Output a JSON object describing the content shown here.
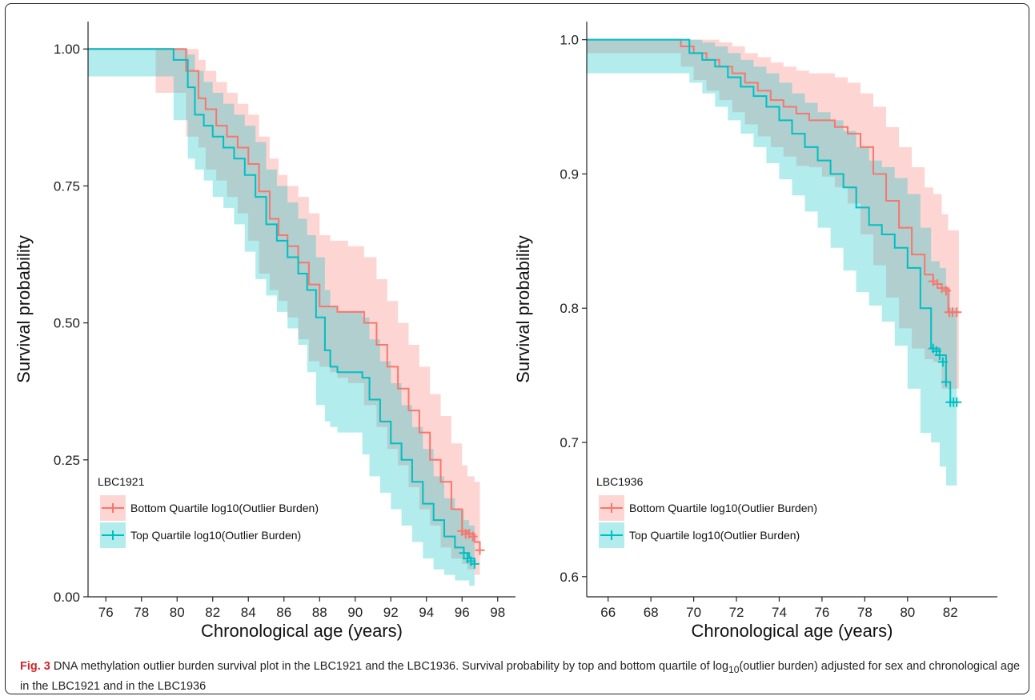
{
  "caption": {
    "label": "Fig. 3",
    "text_before_sub": " DNA methylation outlier burden survival plot in the LBC1921 and the LBC1936. Survival probability by top and bottom quartile of log",
    "subscript": "10",
    "text_after_sub": "(outlier burden) adjusted for sex and chronological age in the LBC1921 and in the LBC1936"
  },
  "colors": {
    "bottom": "#f8766d",
    "top": "#00bfc4",
    "bottom_band": "#f8766d",
    "top_band": "#00bfc4"
  },
  "chart_data": [
    {
      "type": "line",
      "subtype": "kaplan-meier-step",
      "xlabel": "Chronological age (years)",
      "ylabel": "Survival probability",
      "xlim": [
        75,
        99
      ],
      "ylim": [
        0,
        1.05
      ],
      "x_ticks": [
        "76",
        "78",
        "80",
        "82",
        "84",
        "86",
        "88",
        "90",
        "92",
        "94",
        "96",
        "98"
      ],
      "x_tick_values": [
        76,
        78,
        80,
        82,
        84,
        86,
        88,
        90,
        92,
        94,
        96,
        98
      ],
      "y_ticks": [
        "0.00",
        "0.25",
        "0.50",
        "0.75",
        "1.00"
      ],
      "y_tick_values": [
        0,
        0.25,
        0.5,
        0.75,
        1.0
      ],
      "legend": {
        "title": "LBC1921",
        "position": "bottom-left"
      },
      "series": [
        {
          "name": "Bottom Quartile log10(Outlier Burden)",
          "key": "bottom",
          "x": [
            75,
            78.8,
            80.5,
            81.2,
            81.6,
            82.2,
            82.8,
            83.4,
            84.0,
            84.6,
            85.2,
            85.7,
            86.2,
            86.8,
            87.4,
            88.0,
            88.6,
            89.0,
            89.6,
            90.5,
            91.2,
            91.8,
            92.4,
            93.0,
            93.6,
            94.2,
            94.8,
            95.4,
            96.0,
            96.3,
            96.7,
            97.0
          ],
          "y": [
            1.0,
            1.0,
            0.96,
            0.91,
            0.89,
            0.86,
            0.84,
            0.82,
            0.79,
            0.74,
            0.69,
            0.66,
            0.64,
            0.61,
            0.57,
            0.53,
            0.53,
            0.52,
            0.52,
            0.5,
            0.46,
            0.42,
            0.38,
            0.34,
            0.3,
            0.25,
            0.21,
            0.16,
            0.12,
            0.115,
            0.1,
            0.085
          ],
          "band_upper": [
            1.0,
            1.0,
            1.0,
            0.98,
            0.96,
            0.94,
            0.92,
            0.9,
            0.88,
            0.84,
            0.8,
            0.77,
            0.75,
            0.73,
            0.7,
            0.66,
            0.65,
            0.65,
            0.64,
            0.62,
            0.58,
            0.54,
            0.5,
            0.46,
            0.42,
            0.37,
            0.33,
            0.28,
            0.24,
            0.22,
            0.21,
            0.2
          ],
          "band_lower": [
            1.0,
            1.0,
            0.92,
            0.84,
            0.82,
            0.78,
            0.76,
            0.73,
            0.7,
            0.65,
            0.59,
            0.56,
            0.54,
            0.51,
            0.47,
            0.43,
            0.42,
            0.41,
            0.4,
            0.39,
            0.35,
            0.31,
            0.27,
            0.24,
            0.2,
            0.16,
            0.13,
            0.09,
            0.07,
            0.06,
            0.05,
            0.04
          ],
          "censor_x": [
            96.0,
            96.2,
            96.4,
            96.6,
            97.0
          ],
          "censor_y": [
            0.12,
            0.115,
            0.115,
            0.11,
            0.085
          ]
        },
        {
          "name": "Top Quartile log10(Outlier Burden)",
          "key": "top",
          "x": [
            75,
            79.8,
            80.6,
            81.0,
            81.5,
            82.0,
            82.6,
            83.2,
            83.8,
            84.4,
            85.0,
            85.6,
            86.2,
            86.8,
            87.3,
            87.8,
            88.3,
            88.6,
            89.0,
            90.4,
            90.8,
            91.4,
            92.0,
            92.6,
            93.2,
            93.8,
            94.4,
            95.0,
            95.6,
            96.1,
            96.4,
            96.7
          ],
          "y": [
            1.0,
            0.98,
            0.93,
            0.88,
            0.86,
            0.84,
            0.82,
            0.8,
            0.77,
            0.73,
            0.68,
            0.65,
            0.62,
            0.59,
            0.56,
            0.51,
            0.45,
            0.42,
            0.41,
            0.4,
            0.36,
            0.32,
            0.28,
            0.25,
            0.21,
            0.17,
            0.14,
            0.11,
            0.09,
            0.08,
            0.07,
            0.06
          ],
          "band_upper": [
            1.0,
            1.0,
            0.99,
            0.96,
            0.94,
            0.92,
            0.9,
            0.88,
            0.86,
            0.83,
            0.78,
            0.75,
            0.72,
            0.69,
            0.66,
            0.62,
            0.56,
            0.53,
            0.52,
            0.51,
            0.47,
            0.43,
            0.39,
            0.35,
            0.31,
            0.27,
            0.22,
            0.18,
            0.16,
            0.14,
            0.13,
            0.12
          ],
          "band_lower": [
            1.0,
            0.95,
            0.87,
            0.8,
            0.78,
            0.76,
            0.73,
            0.71,
            0.68,
            0.63,
            0.58,
            0.55,
            0.52,
            0.49,
            0.46,
            0.41,
            0.35,
            0.32,
            0.31,
            0.3,
            0.26,
            0.22,
            0.19,
            0.16,
            0.13,
            0.1,
            0.07,
            0.05,
            0.04,
            0.03,
            0.03,
            0.02
          ],
          "censor_x": [
            96.1,
            96.3,
            96.5,
            96.7
          ],
          "censor_y": [
            0.08,
            0.07,
            0.065,
            0.06
          ]
        }
      ]
    },
    {
      "type": "line",
      "subtype": "kaplan-meier-step",
      "xlabel": "Chronological age (years)",
      "ylabel": "Survival probability",
      "xlim": [
        65,
        84.2
      ],
      "ylim": [
        0.585,
        1.0135
      ],
      "x_ticks": [
        "66",
        "68",
        "70",
        "72",
        "74",
        "76",
        "78",
        "80",
        "82"
      ],
      "x_tick_values": [
        66,
        68,
        70,
        72,
        74,
        76,
        78,
        80,
        82
      ],
      "y_ticks": [
        "0.6",
        "0.7",
        "0.8",
        "0.9",
        "1.0"
      ],
      "y_tick_values": [
        0.6,
        0.7,
        0.8,
        0.9,
        1.0
      ],
      "legend": {
        "title": "LBC1936",
        "position": "bottom-left"
      },
      "series": [
        {
          "name": "Bottom Quartile log10(Outlier Burden)",
          "key": "bottom",
          "x": [
            65,
            69.4,
            70.0,
            70.6,
            71.2,
            71.8,
            72.4,
            73.0,
            73.6,
            74.2,
            74.8,
            75.4,
            76.0,
            76.6,
            77.2,
            77.8,
            78.4,
            79.0,
            79.6,
            80.2,
            80.8,
            81.2,
            81.6,
            81.9,
            82.4
          ],
          "y": [
            1.0,
            0.995,
            0.99,
            0.985,
            0.98,
            0.975,
            0.968,
            0.962,
            0.955,
            0.95,
            0.945,
            0.94,
            0.94,
            0.935,
            0.93,
            0.92,
            0.9,
            0.88,
            0.86,
            0.84,
            0.825,
            0.818,
            0.815,
            0.797,
            0.797
          ],
          "band_upper": [
            1.0,
            1.0,
            1.0,
            1.0,
            0.998,
            0.995,
            0.99,
            0.987,
            0.983,
            0.98,
            0.977,
            0.975,
            0.975,
            0.972,
            0.968,
            0.96,
            0.95,
            0.935,
            0.92,
            0.905,
            0.89,
            0.885,
            0.87,
            0.858,
            0.858
          ],
          "band_lower": [
            1.0,
            0.99,
            0.98,
            0.97,
            0.962,
            0.955,
            0.946,
            0.937,
            0.928,
            0.92,
            0.913,
            0.906,
            0.905,
            0.898,
            0.89,
            0.878,
            0.855,
            0.832,
            0.808,
            0.785,
            0.77,
            0.762,
            0.76,
            0.74,
            0.74
          ],
          "censor_x": [
            81.2,
            81.4,
            81.6,
            81.8,
            81.95,
            82.1,
            82.3
          ],
          "censor_y": [
            0.82,
            0.818,
            0.815,
            0.813,
            0.797,
            0.797,
            0.797
          ]
        },
        {
          "name": "Top Quartile log10(Outlier Burden)",
          "key": "top",
          "x": [
            65,
            69.8,
            70.4,
            71.0,
            71.6,
            72.2,
            72.8,
            73.4,
            74.0,
            74.6,
            75.2,
            75.8,
            76.4,
            77.0,
            77.6,
            78.2,
            78.8,
            79.4,
            80.0,
            80.6,
            81.1,
            81.5,
            81.8,
            82.0,
            82.3
          ],
          "y": [
            1.0,
            0.99,
            0.985,
            0.98,
            0.972,
            0.965,
            0.958,
            0.95,
            0.94,
            0.93,
            0.92,
            0.91,
            0.9,
            0.89,
            0.875,
            0.862,
            0.855,
            0.845,
            0.83,
            0.8,
            0.77,
            0.765,
            0.745,
            0.73,
            0.73
          ],
          "band_upper": [
            1.0,
            1.0,
            0.998,
            0.995,
            0.99,
            0.985,
            0.98,
            0.975,
            0.968,
            0.96,
            0.953,
            0.946,
            0.94,
            0.932,
            0.92,
            0.91,
            0.905,
            0.897,
            0.885,
            0.86,
            0.835,
            0.83,
            0.815,
            0.8,
            0.8
          ],
          "band_lower": [
            1.0,
            0.975,
            0.968,
            0.96,
            0.95,
            0.94,
            0.93,
            0.92,
            0.908,
            0.896,
            0.884,
            0.872,
            0.86,
            0.845,
            0.828,
            0.812,
            0.802,
            0.79,
            0.772,
            0.74,
            0.707,
            0.7,
            0.682,
            0.668,
            0.668
          ],
          "censor_x": [
            81.2,
            81.35,
            81.5,
            81.65,
            81.8,
            82.0,
            82.15,
            82.3
          ],
          "censor_y": [
            0.77,
            0.768,
            0.765,
            0.76,
            0.745,
            0.73,
            0.73,
            0.73
          ]
        }
      ]
    }
  ]
}
